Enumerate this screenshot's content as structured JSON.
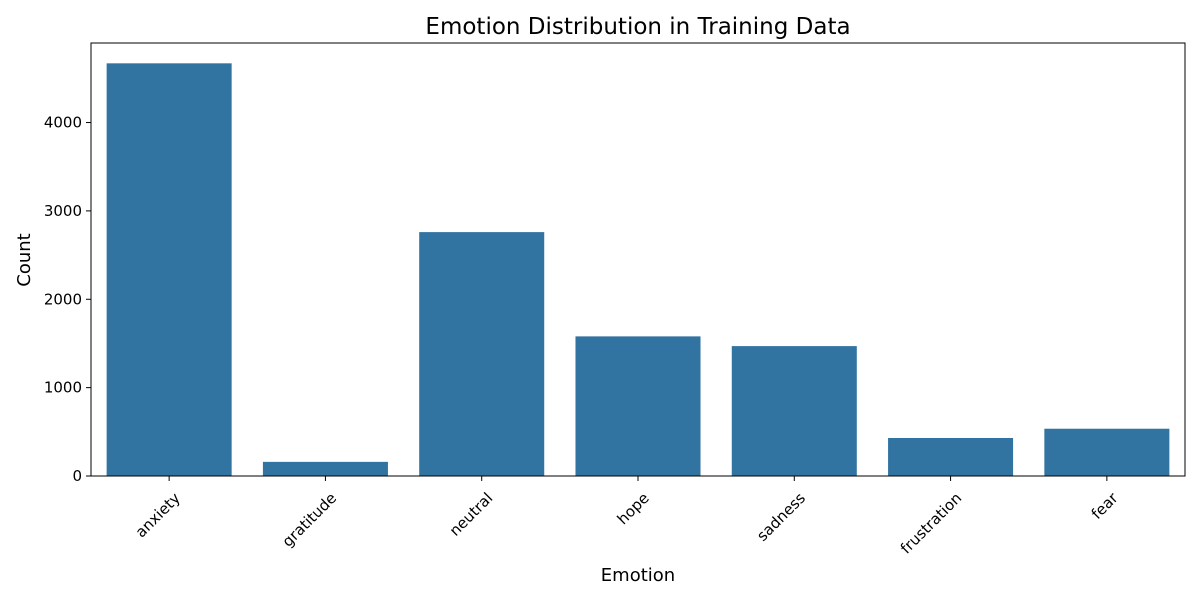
{
  "chart_data": {
    "type": "bar",
    "title": "Emotion Distribution in Training Data",
    "xlabel": "Emotion",
    "ylabel": "Count",
    "categories": [
      "anxiety",
      "gratitude",
      "neutral",
      "hope",
      "sadness",
      "frustration",
      "fear"
    ],
    "values": [
      4670,
      160,
      2760,
      1580,
      1470,
      430,
      535
    ],
    "ylim": [
      0,
      4900
    ],
    "yticks": [
      0,
      1000,
      2000,
      3000,
      4000
    ],
    "xtick_rotation": 45,
    "grid": false,
    "bar_color": "#3274a1"
  }
}
